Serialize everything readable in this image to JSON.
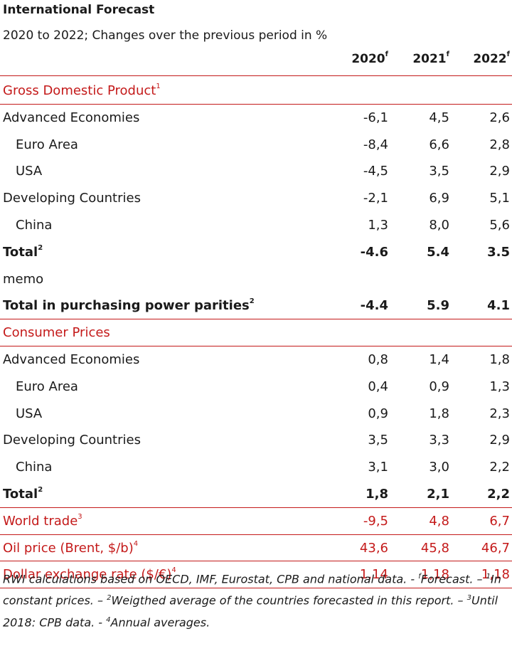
{
  "title": "International Forecast",
  "subtitle": "2020 to 2022; Changes over the previous period in %",
  "columns": [
    {
      "label": "2020",
      "sup": "f"
    },
    {
      "label": "2021",
      "sup": "f"
    },
    {
      "label": "2022",
      "sup": "f"
    }
  ],
  "colors": {
    "accent": "#c41a1a",
    "text": "#1a1a1a"
  },
  "rows": [
    {
      "label": "Gross Domestic Product",
      "sup": "1",
      "style": "section",
      "values": []
    },
    {
      "label": "Advanced Economies",
      "sup": "",
      "style": "normal",
      "values": [
        "-6,1",
        "4,5",
        "2,6"
      ]
    },
    {
      "label": "Euro Area",
      "sup": "",
      "style": "indent",
      "values": [
        "-8,4",
        "6,6",
        "2,8"
      ]
    },
    {
      "label": "USA",
      "sup": "",
      "style": "indent",
      "values": [
        "-4,5",
        "3,5",
        "2,9"
      ]
    },
    {
      "label": "Developing Countries",
      "sup": "",
      "style": "normal",
      "values": [
        "-2,1",
        "6,9",
        "5,1"
      ]
    },
    {
      "label": "China",
      "sup": "",
      "style": "indent",
      "values": [
        "1,3",
        "8,0",
        "5,6"
      ]
    },
    {
      "label": "Total",
      "sup": "2",
      "style": "bold",
      "values": [
        "-4.6",
        "5.4",
        "3.5"
      ]
    },
    {
      "label": "memo",
      "sup": "",
      "style": "normal",
      "values": []
    },
    {
      "label": "Total in purchasing power parities",
      "sup": "2",
      "style": "bold",
      "values": [
        "-4.4",
        "5.9",
        "4.1"
      ]
    },
    {
      "label": "Consumer Prices",
      "sup": "",
      "style": "section",
      "values": []
    },
    {
      "label": "Advanced Economies",
      "sup": "",
      "style": "normal",
      "values": [
        "0,8",
        "1,4",
        "1,8"
      ]
    },
    {
      "label": "Euro Area",
      "sup": "",
      "style": "indent",
      "values": [
        "0,4",
        "0,9",
        "1,3"
      ]
    },
    {
      "label": "USA",
      "sup": "",
      "style": "indent",
      "values": [
        "0,9",
        "1,8",
        "2,3"
      ]
    },
    {
      "label": "Developing Countries",
      "sup": "",
      "style": "normal",
      "values": [
        "3,5",
        "3,3",
        "2,9"
      ]
    },
    {
      "label": "China",
      "sup": "",
      "style": "indent",
      "values": [
        "3,1",
        "3,0",
        "2,2"
      ]
    },
    {
      "label": "Total",
      "sup": "2",
      "style": "bold",
      "values": [
        "1,8",
        "2,1",
        "2,2"
      ]
    },
    {
      "label": "World trade",
      "sup": "3",
      "style": "section",
      "values": [
        "-9,5",
        "4,8",
        "6,7"
      ]
    },
    {
      "label": "Oil price (Brent, $/b)",
      "sup": "4",
      "style": "section",
      "values": [
        "43,6",
        "45,8",
        "46,7"
      ]
    },
    {
      "label": "Dollar exchange rate ($/€)",
      "sup": "4",
      "style": "section",
      "values": [
        "1,14",
        "1,18",
        "1,18"
      ]
    }
  ],
  "footnote": {
    "p1": "RWI calculations based on OECD, IMF, Eurostat, CPB and national data. - ",
    "s1": "f",
    "p2": "Forecast. – ",
    "s2": "1",
    "p3": "In constant prices. – ",
    "s3": "2",
    "p4": "Weigthed average of the countries forecasted in this report. – ",
    "s4": "3",
    "p5": "Until  2018: CPB data. - ",
    "s5": "4",
    "p6": "Annual averages."
  }
}
